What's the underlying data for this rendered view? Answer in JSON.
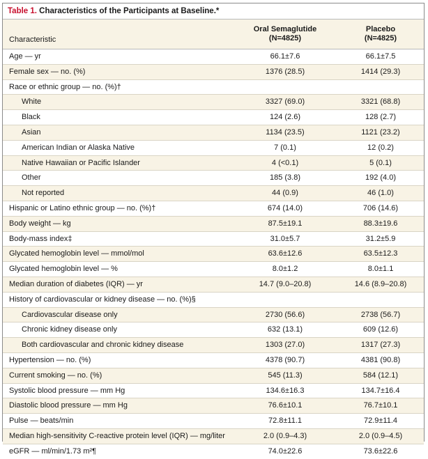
{
  "caption": {
    "number": "Table 1.",
    "title": "Characteristics of the Participants at Baseline.*"
  },
  "header": {
    "characteristic": "Characteristic",
    "col1_name": "Oral Semaglutide",
    "col1_n": "(N=4825)",
    "col2_name": "Placebo",
    "col2_n": "(N=4825)"
  },
  "rows": [
    {
      "label": "Age — yr",
      "v1": "66.1±7.6",
      "v2": "66.1±7.5",
      "indent": false
    },
    {
      "label": "Female sex — no. (%)",
      "v1": "1376 (28.5)",
      "v2": "1414 (29.3)",
      "indent": false
    },
    {
      "label": "Race or ethnic group — no. (%)†",
      "v1": "",
      "v2": "",
      "indent": false
    },
    {
      "label": "White",
      "v1": "3327 (69.0)",
      "v2": "3321 (68.8)",
      "indent": true
    },
    {
      "label": "Black",
      "v1": "124 (2.6)",
      "v2": "128 (2.7)",
      "indent": true
    },
    {
      "label": "Asian",
      "v1": "1134 (23.5)",
      "v2": "1121 (23.2)",
      "indent": true
    },
    {
      "label": "American Indian or Alaska Native",
      "v1": "7 (0.1)",
      "v2": "12 (0.2)",
      "indent": true
    },
    {
      "label": "Native Hawaiian or Pacific Islander",
      "v1": "4 (<0.1)",
      "v2": "5 (0.1)",
      "indent": true
    },
    {
      "label": "Other",
      "v1": "185 (3.8)",
      "v2": "192 (4.0)",
      "indent": true
    },
    {
      "label": "Not reported",
      "v1": "44 (0.9)",
      "v2": "46 (1.0)",
      "indent": true
    },
    {
      "label": "Hispanic or Latino ethnic group — no. (%)†",
      "v1": "674 (14.0)",
      "v2": "706 (14.6)",
      "indent": false
    },
    {
      "label": "Body weight — kg",
      "v1": "87.5±19.1",
      "v2": "88.3±19.6",
      "indent": false
    },
    {
      "label": "Body-mass index‡",
      "v1": "31.0±5.7",
      "v2": "31.2±5.9",
      "indent": false
    },
    {
      "label": "Glycated hemoglobin level — mmol/mol",
      "v1": "63.6±12.6",
      "v2": "63.5±12.3",
      "indent": false
    },
    {
      "label": "Glycated hemoglobin level — %",
      "v1": "8.0±1.2",
      "v2": "8.0±1.1",
      "indent": false
    },
    {
      "label": "Median duration of diabetes (IQR) — yr",
      "v1": "14.7 (9.0–20.8)",
      "v2": "14.6 (8.9–20.8)",
      "indent": false
    },
    {
      "label": "History of cardiovascular or kidney disease — no. (%)§",
      "v1": "",
      "v2": "",
      "indent": false
    },
    {
      "label": "Cardiovascular disease only",
      "v1": "2730 (56.6)",
      "v2": "2738 (56.7)",
      "indent": true
    },
    {
      "label": "Chronic kidney disease only",
      "v1": "632 (13.1)",
      "v2": "609 (12.6)",
      "indent": true
    },
    {
      "label": "Both cardiovascular and chronic kidney disease",
      "v1": "1303 (27.0)",
      "v2": "1317 (27.3)",
      "indent": true
    },
    {
      "label": "Hypertension — no. (%)",
      "v1": "4378 (90.7)",
      "v2": "4381 (90.8)",
      "indent": false
    },
    {
      "label": "Current smoking — no. (%)",
      "v1": "545 (11.3)",
      "v2": "584 (12.1)",
      "indent": false
    },
    {
      "label": "Systolic blood pressure — mm Hg",
      "v1": "134.6±16.3",
      "v2": "134.7±16.4",
      "indent": false
    },
    {
      "label": "Diastolic blood pressure — mm Hg",
      "v1": "76.6±10.1",
      "v2": "76.7±10.1",
      "indent": false
    },
    {
      "label": "Pulse — beats/min",
      "v1": "72.8±11.1",
      "v2": "72.9±11.4",
      "indent": false
    },
    {
      "label": "Median high-sensitivity C-reactive protein level (IQR) — mg/liter",
      "v1": "2.0 (0.9–4.3)",
      "v2": "2.0 (0.9–4.5)",
      "indent": false
    },
    {
      "label": "eGFR — ml/min/1.73 m²¶",
      "v1": "74.0±22.6",
      "v2": "73.6±22.6",
      "indent": false
    }
  ],
  "colors": {
    "table_number": "#c8102e",
    "stripe": "#f8f3e5",
    "border": "#8a8a8a"
  }
}
